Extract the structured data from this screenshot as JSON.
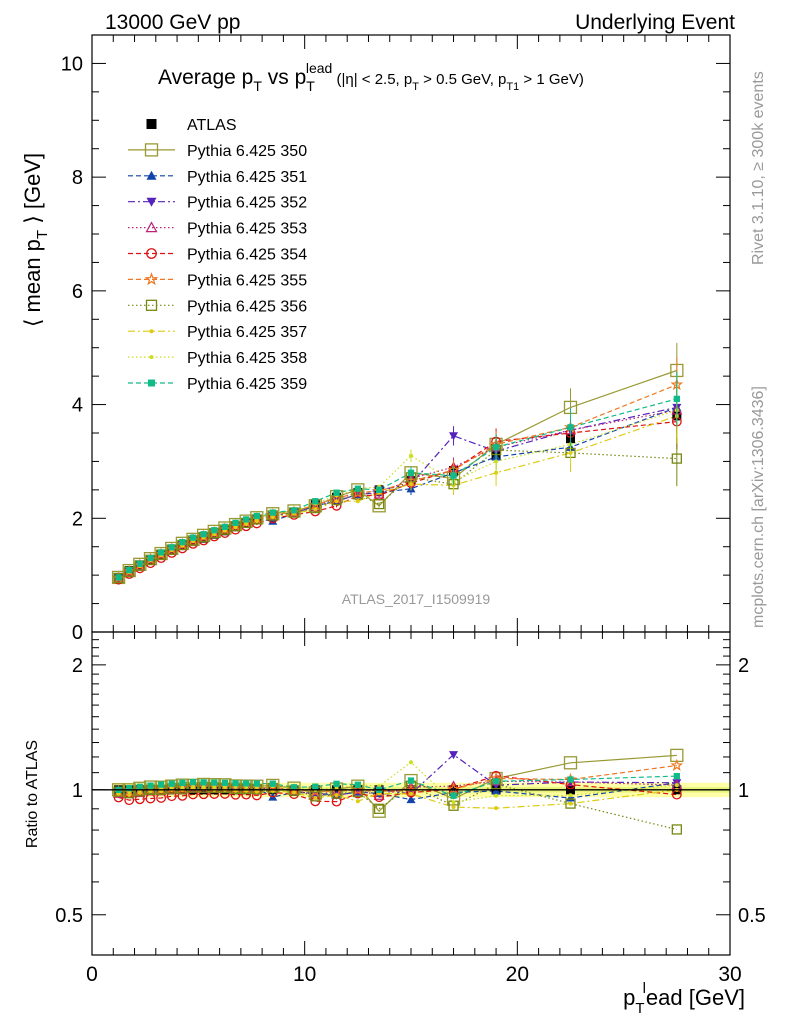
{
  "header": {
    "left": "13000 GeV pp",
    "right": "Underlying Event"
  },
  "chart_data": {
    "type": "scatter",
    "title": "Average p_T vs p_T^lead (|η| < 2.5, p_T > 0.5 GeV, p_T1 > 1 GeV)",
    "title_parts": {
      "main": "Average p",
      "main_sub": "T",
      "vs": " vs p",
      "vs_sub": "T",
      "vs_sup": "lead",
      "cuts_a": " (|η| < 2.5, p",
      "cuts_a_sub": "T",
      "cuts_b": " > 0.5 GeV, p",
      "cuts_b_sub": "T1",
      "cuts_c": " > 1 GeV)"
    },
    "xlabel": "p_T^lead [GeV]",
    "xlabel_parts": {
      "p": "p",
      "sub": "T",
      "sup": "l",
      "rest": "ead [GeV]"
    },
    "ylabel": "⟨ mean p_T ⟩ [GeV]",
    "ylabel_parts": {
      "pre": "⟨ mean p",
      "sub": "T",
      "post": " ⟩ [GeV]"
    },
    "ratio_ylabel": "Ratio to ATLAS",
    "xlim": [
      0,
      30
    ],
    "ylim": [
      0,
      10.5
    ],
    "ratio_ylim": [
      0.4,
      2.4
    ],
    "x_ticks": [
      0,
      10,
      20,
      30
    ],
    "y_ticks": [
      0,
      2,
      4,
      6,
      8,
      10
    ],
    "ratio_ticks": [
      0.5,
      1,
      2
    ],
    "watermark": "ATLAS_2017_I1509919",
    "side_text_top": "Rivet 3.1.10, ≥ 300k events",
    "side_text_bottom": "mcplots.cern.ch [arXiv:1306.3436]",
    "x": [
      1.25,
      1.75,
      2.25,
      2.75,
      3.25,
      3.75,
      4.25,
      4.75,
      5.25,
      5.75,
      6.25,
      6.75,
      7.25,
      7.75,
      8.5,
      9.5,
      10.5,
      11.5,
      12.5,
      13.5,
      15,
      17,
      19,
      22.5,
      27.5
    ],
    "series": [
      {
        "name": "ATLAS",
        "color": "#000000",
        "marker": "square-filled",
        "dash": "none",
        "values": [
          0.96,
          1.08,
          1.18,
          1.27,
          1.36,
          1.44,
          1.52,
          1.59,
          1.65,
          1.72,
          1.78,
          1.85,
          1.91,
          1.97,
          2.03,
          2.11,
          2.26,
          2.37,
          2.45,
          2.5,
          2.66,
          2.84,
          3.1,
          3.4,
          3.8
        ]
      },
      {
        "name": "Pythia 6.425 350",
        "color": "#999933",
        "marker": "square-open",
        "dash": "solid",
        "values": [
          0.96,
          1.08,
          1.19,
          1.29,
          1.38,
          1.47,
          1.56,
          1.63,
          1.7,
          1.77,
          1.83,
          1.89,
          1.95,
          2.01,
          2.08,
          2.13,
          2.22,
          2.38,
          2.5,
          2.22,
          2.8,
          2.7,
          3.3,
          3.95,
          4.6
        ]
      },
      {
        "name": "Pythia 6.425 351",
        "color": "#1144aa",
        "marker": "triangle-filled",
        "dash": "dashed",
        "values": [
          0.95,
          1.07,
          1.18,
          1.28,
          1.37,
          1.46,
          1.54,
          1.62,
          1.68,
          1.75,
          1.81,
          1.88,
          1.93,
          1.99,
          1.95,
          2.08,
          2.22,
          2.3,
          2.42,
          2.45,
          2.52,
          2.8,
          3.08,
          3.25,
          3.95
        ]
      },
      {
        "name": "Pythia 6.425 352",
        "color": "#5522bb",
        "marker": "triangle-down-filled",
        "dash": "dashdot",
        "values": [
          0.95,
          1.07,
          1.17,
          1.27,
          1.36,
          1.45,
          1.53,
          1.61,
          1.67,
          1.74,
          1.8,
          1.86,
          1.92,
          1.98,
          2.05,
          2.1,
          2.2,
          2.3,
          2.42,
          2.5,
          2.6,
          3.45,
          3.18,
          3.55,
          3.95
        ]
      },
      {
        "name": "Pythia 6.425 353",
        "color": "#bb2277",
        "marker": "triangle-open",
        "dash": "dotted",
        "values": [
          0.94,
          1.06,
          1.16,
          1.26,
          1.35,
          1.44,
          1.52,
          1.6,
          1.66,
          1.73,
          1.79,
          1.85,
          1.91,
          1.97,
          2.04,
          2.1,
          2.2,
          2.35,
          2.45,
          2.42,
          2.7,
          2.9,
          3.25,
          3.55,
          3.9
        ]
      },
      {
        "name": "Pythia 6.425 354",
        "color": "#dd1111",
        "marker": "circle-open",
        "dash": "dashed",
        "values": [
          0.92,
          1.02,
          1.12,
          1.21,
          1.3,
          1.39,
          1.47,
          1.55,
          1.61,
          1.68,
          1.74,
          1.8,
          1.86,
          1.91,
          2.0,
          2.06,
          2.12,
          2.22,
          2.4,
          2.4,
          2.62,
          2.85,
          3.35,
          3.5,
          3.7
        ]
      },
      {
        "name": "Pythia 6.425 355",
        "color": "#ee7722",
        "marker": "star-open",
        "dash": "dashed",
        "values": [
          0.95,
          1.07,
          1.18,
          1.28,
          1.37,
          1.46,
          1.54,
          1.62,
          1.68,
          1.75,
          1.81,
          1.87,
          1.93,
          1.99,
          2.06,
          2.11,
          2.24,
          2.35,
          2.45,
          2.48,
          2.65,
          2.85,
          3.3,
          3.6,
          4.35
        ]
      },
      {
        "name": "Pythia 6.425 356",
        "color": "#778811",
        "marker": "square-open",
        "dash": "dotted",
        "values": [
          0.95,
          1.06,
          1.17,
          1.27,
          1.36,
          1.45,
          1.53,
          1.61,
          1.67,
          1.74,
          1.8,
          1.86,
          1.92,
          1.98,
          2.05,
          2.1,
          2.18,
          2.32,
          2.42,
          2.25,
          2.72,
          2.6,
          3.2,
          3.15,
          3.05
        ]
      },
      {
        "name": "Pythia 6.425 357",
        "color": "#ddcc11",
        "marker": "dot",
        "dash": "dashdot",
        "values": [
          0.94,
          1.05,
          1.16,
          1.26,
          1.35,
          1.44,
          1.52,
          1.6,
          1.66,
          1.72,
          1.78,
          1.84,
          1.9,
          1.95,
          2.02,
          2.08,
          2.16,
          2.3,
          2.3,
          2.45,
          2.6,
          2.58,
          2.8,
          3.15,
          3.8
        ]
      },
      {
        "name": "Pythia 6.425 358",
        "color": "#ccdd22",
        "marker": "dot",
        "dash": "dotted",
        "values": [
          0.95,
          1.07,
          1.18,
          1.28,
          1.37,
          1.46,
          1.54,
          1.62,
          1.68,
          1.75,
          1.81,
          1.88,
          1.94,
          2.0,
          2.07,
          2.13,
          2.26,
          2.4,
          2.52,
          2.55,
          3.1,
          2.65,
          3.0,
          3.3,
          3.9
        ]
      },
      {
        "name": "Pythia 6.425 359",
        "color": "#11bb88",
        "marker": "square-filled-small",
        "dash": "dashed",
        "values": [
          0.96,
          1.09,
          1.2,
          1.3,
          1.4,
          1.49,
          1.58,
          1.66,
          1.72,
          1.79,
          1.85,
          1.92,
          1.98,
          2.04,
          2.1,
          2.14,
          2.3,
          2.45,
          2.52,
          2.5,
          2.8,
          2.75,
          3.25,
          3.6,
          4.1
        ]
      }
    ]
  }
}
